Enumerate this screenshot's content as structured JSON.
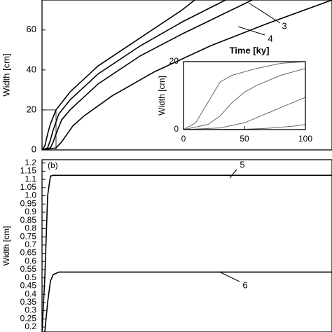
{
  "chart_data": [
    {
      "type": "line",
      "ylabel": "Width [cm]",
      "annotation": "Time [ky]",
      "xlim": [
        0,
        2070
      ],
      "ylim": [
        0,
        75
      ],
      "yticks": [
        0,
        20,
        40,
        60
      ],
      "series": [
        {
          "color": "#000000",
          "x": [
            0,
            20,
            40,
            60,
            100,
            200,
            400,
            700,
            1000,
            1090
          ],
          "values": [
            0,
            2,
            8,
            13,
            20,
            29,
            42,
            56,
            70,
            75
          ]
        },
        {
          "color": "#000000",
          "x": [
            0,
            40,
            60,
            80,
            120,
            200,
            400,
            700,
            1000,
            1310
          ],
          "values": [
            0,
            1,
            5,
            10,
            18,
            25,
            38,
            52,
            64,
            75
          ]
        },
        {
          "name": "3",
          "color": "#000000",
          "x": [
            0,
            60,
            80,
            100,
            140,
            200,
            400,
            700,
            1000,
            1500
          ],
          "values": [
            0,
            1,
            4,
            8,
            15,
            20,
            33,
            47,
            58,
            75
          ]
        },
        {
          "name": "4",
          "color": "#000000",
          "x": [
            0,
            100,
            140,
            180,
            220,
            300,
            500,
            800,
            1200,
            1600,
            2070
          ],
          "values": [
            0,
            1,
            4,
            8,
            12,
            17,
            27,
            39,
            52,
            63,
            75
          ]
        }
      ]
    },
    {
      "type": "line",
      "ylabel": "Width [cm]",
      "xlim": [
        0,
        100
      ],
      "ylim": [
        0,
        20
      ],
      "xticks": [
        0,
        50,
        100
      ],
      "yticks": [
        0,
        20
      ],
      "series": [
        {
          "color": "#666666",
          "x": [
            0,
            10,
            20,
            30,
            40,
            60,
            80,
            100
          ],
          "values": [
            0,
            2,
            8,
            14,
            16,
            18,
            19.5,
            20
          ]
        },
        {
          "color": "#666666",
          "x": [
            0,
            20,
            30,
            40,
            50,
            60,
            80,
            100
          ],
          "values": [
            0,
            1.5,
            4,
            8,
            11,
            13,
            16,
            18
          ]
        },
        {
          "color": "#666666",
          "x": [
            0,
            30,
            50,
            60,
            70,
            80,
            90,
            100
          ],
          "values": [
            0,
            0.5,
            2,
            3.5,
            5,
            6.5,
            8,
            9.5
          ]
        },
        {
          "color": "#666666",
          "x": [
            0,
            50,
            70,
            80,
            90,
            100
          ],
          "values": [
            0,
            0.1,
            0.4,
            0.7,
            1,
            1.5
          ]
        }
      ]
    },
    {
      "type": "line",
      "title": "(b)",
      "ylabel": "Width [cm]",
      "xlim": [
        0,
        2070
      ],
      "ylim": [
        0.17,
        1.22
      ],
      "yticks": [
        0.2,
        0.25,
        0.3,
        0.35,
        0.4,
        0.45,
        0.5,
        0.55,
        0.6,
        0.65,
        0.7,
        0.75,
        0.8,
        0.85,
        0.9,
        0.95,
        {
          "value": 1,
          "label": "1.0"
        },
        1.05,
        1.1,
        1.15,
        1.2
      ],
      "series": [
        {
          "name": "5",
          "color": "#000000",
          "x": [
            0,
            20,
            40,
            60,
            80,
            2070
          ],
          "values": [
            0.17,
            0.5,
            1.0,
            1.12,
            1.125,
            1.125
          ]
        },
        {
          "name": "6",
          "color": "#000000",
          "x": [
            20,
            40,
            60,
            80,
            120,
            2070
          ],
          "values": [
            0.17,
            0.35,
            0.48,
            0.52,
            0.535,
            0.535
          ]
        }
      ]
    }
  ]
}
